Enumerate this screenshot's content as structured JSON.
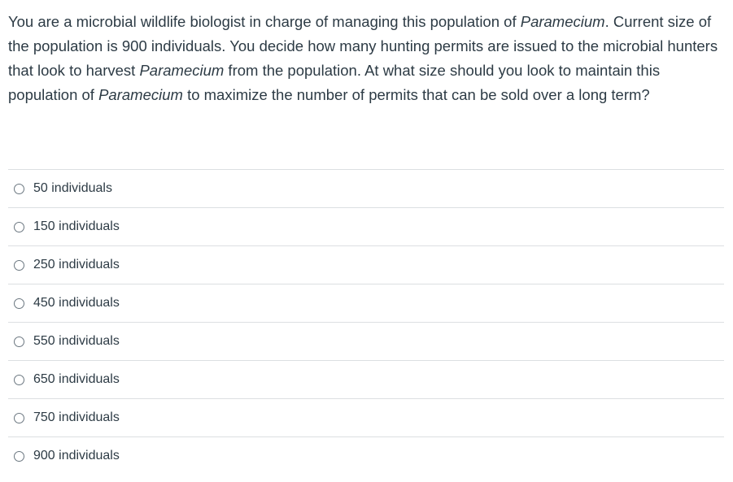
{
  "question": {
    "parts": [
      {
        "text": "You are a microbial wildlife biologist in charge of managing this population of ",
        "italic": false
      },
      {
        "text": "Paramecium",
        "italic": true
      },
      {
        "text": ". Current size of the population is 900 individuals. You decide how many hunting permits are issued to the microbial hunters that look to harvest ",
        "italic": false
      },
      {
        "text": "Paramecium",
        "italic": true
      },
      {
        "text": " from the population. At what size should you look to maintain this population of ",
        "italic": false
      },
      {
        "text": "Paramecium",
        "italic": true
      },
      {
        "text": " to maximize the number of permits that can be sold over a long term?",
        "italic": false
      }
    ]
  },
  "answers": [
    {
      "label": "50 individuals",
      "selected": false
    },
    {
      "label": "150 individuals",
      "selected": false
    },
    {
      "label": "250 individuals",
      "selected": false
    },
    {
      "label": "450 individuals",
      "selected": false
    },
    {
      "label": "550 individuals",
      "selected": false
    },
    {
      "label": "650 individuals",
      "selected": false
    },
    {
      "label": "750 individuals",
      "selected": false
    },
    {
      "label": "900 individuals",
      "selected": false
    }
  ],
  "colors": {
    "text": "#2d3b45",
    "divider": "#dcdfe2",
    "radio_border": "#6b7780"
  }
}
